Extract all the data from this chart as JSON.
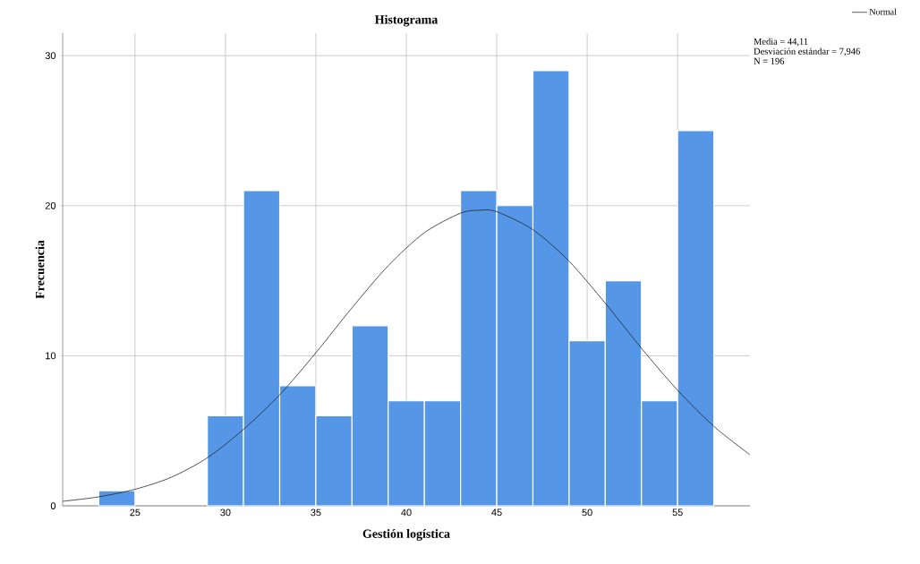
{
  "chart_data": {
    "type": "histogram",
    "title": "Histograma",
    "xlabel": "Gestión logística",
    "ylabel": "Frecuencia",
    "annotations": [
      "Media = 44,11",
      "Desviación estándar = 7,946",
      "N = 196"
    ],
    "series": [
      {
        "color": "#5596e6",
        "bins": [
          23,
          25,
          27,
          29,
          31,
          33,
          35,
          37,
          39,
          41,
          43,
          45,
          47,
          49,
          51,
          53,
          55,
          57
        ],
        "values": [
          1,
          0,
          0,
          6,
          21,
          8,
          6,
          12,
          7,
          7,
          21,
          20,
          29,
          11,
          15,
          7,
          25
        ]
      },
      {
        "type": "line",
        "name": "Normal",
        "color": "#262626",
        "x": [
          21,
          23,
          25,
          27,
          29,
          31,
          33,
          35,
          37,
          39,
          41,
          43,
          44.11,
          45,
          47,
          49,
          51,
          53,
          55,
          57,
          59
        ],
        "values": [
          0.3,
          0.6,
          1.1,
          1.9,
          3.2,
          5.1,
          7.4,
          10.2,
          13.2,
          16.0,
          18.2,
          19.5,
          19.7,
          19.6,
          18.4,
          16.3,
          13.5,
          10.5,
          7.7,
          5.3,
          3.4
        ]
      }
    ],
    "xlim": [
      21,
      59
    ],
    "ylim": [
      0,
      31.5
    ],
    "xticks": [
      25,
      30,
      35,
      40,
      45,
      50,
      55
    ],
    "yticks": [
      0,
      10,
      20,
      30
    ],
    "grid": true,
    "legend": "top right",
    "marker": "none",
    "line_style": "solid"
  }
}
